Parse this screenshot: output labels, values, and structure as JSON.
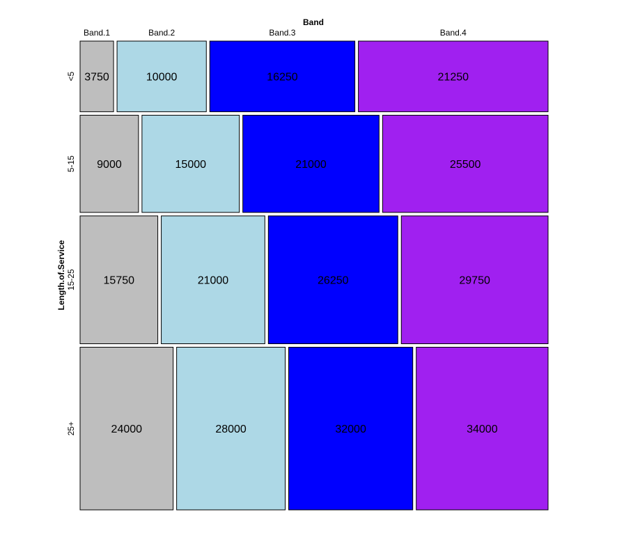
{
  "chart_data": {
    "type": "mosaic",
    "title": "",
    "xlabel": "Band",
    "ylabel": "Length.of.Service",
    "columns": [
      "Band.1",
      "Band.2",
      "Band.3",
      "Band.4"
    ],
    "rows": [
      "<5",
      "5-15",
      "15-25",
      "25+"
    ],
    "values": [
      [
        3750,
        10000,
        16250,
        21250
      ],
      [
        9000,
        15000,
        21000,
        25500
      ],
      [
        15750,
        21000,
        26250,
        29750
      ],
      [
        24000,
        28000,
        32000,
        34000
      ]
    ],
    "colors": [
      "#bebebe",
      "#add8e6",
      "#0000ff",
      "#a020f0"
    ],
    "grid": false,
    "legend": "none"
  }
}
